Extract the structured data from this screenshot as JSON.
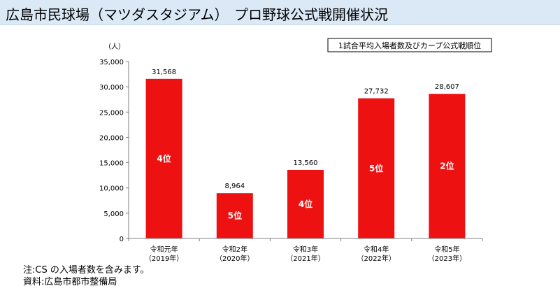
{
  "header": {
    "title": "広島市民球場（マツダスタジアム）",
    "subtitle": "プロ野球公式戦開催状況"
  },
  "notes": {
    "line1": "注:CS の入場者数を含みます。",
    "line2": "資料:広島市都市整備局"
  },
  "colors": {
    "bar": "#ee1111",
    "header_bg": "#dbe9f7",
    "axis": "#808080"
  },
  "chart_data": {
    "type": "bar",
    "title": "1試合平均入場者数及びカープ公式戦順位",
    "ylabel": "（人）",
    "xlabel": "",
    "ylim": [
      0,
      35000
    ],
    "yticks": [
      0,
      5000,
      10000,
      15000,
      20000,
      25000,
      30000,
      35000
    ],
    "ytick_labels": [
      "0",
      "5,000",
      "10,000",
      "15,000",
      "20,000",
      "25,000",
      "30,000",
      "35,000"
    ],
    "categories": [
      "令和元年",
      "令和2年",
      "令和3年",
      "令和4年",
      "令和5年"
    ],
    "category_years": [
      "（2019年）",
      "（2020年）",
      "（2021年）",
      "（2022年）",
      "（2023年）"
    ],
    "values": [
      31568,
      8964,
      13560,
      27732,
      28607
    ],
    "value_labels": [
      "31,568",
      "8,964",
      "13,560",
      "27,732",
      "28,607"
    ],
    "ranks": [
      "4位",
      "5位",
      "4位",
      "5位",
      "2位"
    ],
    "grid": false,
    "legend": "top-right"
  }
}
